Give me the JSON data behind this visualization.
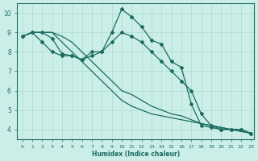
{
  "xlabel": "Humidex (Indice chaleur)",
  "ylabel": "",
  "bg_color": "#cceee8",
  "line_color": "#1a6b60",
  "grid_color": "#aaddcc",
  "xlim": [
    0,
    23
  ],
  "ylim": [
    3.5,
    10.5
  ],
  "yticks": [
    4,
    5,
    6,
    7,
    8,
    9,
    10
  ],
  "xticks": [
    0,
    1,
    2,
    3,
    4,
    5,
    6,
    7,
    8,
    9,
    10,
    11,
    12,
    13,
    14,
    15,
    16,
    17,
    18,
    19,
    20,
    21,
    22,
    23
  ],
  "series1_x": [
    0,
    1,
    2,
    3,
    4,
    5,
    6,
    7,
    8,
    9,
    10,
    11,
    12,
    13,
    14,
    15,
    16,
    17,
    18,
    19,
    20,
    21,
    22,
    23
  ],
  "series1_y": [
    8.8,
    9.0,
    9.0,
    8.7,
    7.9,
    7.8,
    7.6,
    8.0,
    8.0,
    9.0,
    10.2,
    9.8,
    9.3,
    8.6,
    8.4,
    7.5,
    7.2,
    5.3,
    4.2,
    4.1,
    4.0,
    4.0,
    4.0,
    3.8
  ],
  "series2_x": [
    0,
    1,
    2,
    3,
    4,
    5,
    6,
    7,
    8,
    9,
    10,
    11,
    12,
    13,
    14,
    15,
    16,
    17,
    18,
    19,
    20,
    21,
    22,
    23
  ],
  "series2_y": [
    8.8,
    9.0,
    8.5,
    8.0,
    7.8,
    7.8,
    7.6,
    7.8,
    8.0,
    8.5,
    9.0,
    8.8,
    8.5,
    8.0,
    7.5,
    7.0,
    6.5,
    6.0,
    4.8,
    4.2,
    4.0,
    4.0,
    4.0,
    3.8
  ],
  "series3_x": [
    0,
    1,
    2,
    3,
    4,
    5,
    6,
    7,
    8,
    9,
    10,
    11,
    12,
    13,
    14,
    15,
    16,
    17,
    18,
    19,
    20,
    21,
    22,
    23
  ],
  "series3_y": [
    8.8,
    9.0,
    9.0,
    9.0,
    8.5,
    8.0,
    7.5,
    7.0,
    6.5,
    6.0,
    5.5,
    5.2,
    5.0,
    4.8,
    4.7,
    4.6,
    4.5,
    4.4,
    4.3,
    4.2,
    4.1,
    4.0,
    3.9,
    3.8
  ],
  "series4_x": [
    0,
    1,
    2,
    3,
    4,
    5,
    6,
    7,
    8,
    9,
    10,
    11,
    12,
    13,
    14,
    15,
    16,
    17,
    18,
    19,
    20,
    21,
    22,
    23
  ],
  "series4_y": [
    8.8,
    9.0,
    9.0,
    9.0,
    8.8,
    8.5,
    8.0,
    7.5,
    7.0,
    6.5,
    6.0,
    5.8,
    5.5,
    5.2,
    5.0,
    4.8,
    4.7,
    4.5,
    4.3,
    4.2,
    4.1,
    4.0,
    3.9,
    3.8
  ]
}
